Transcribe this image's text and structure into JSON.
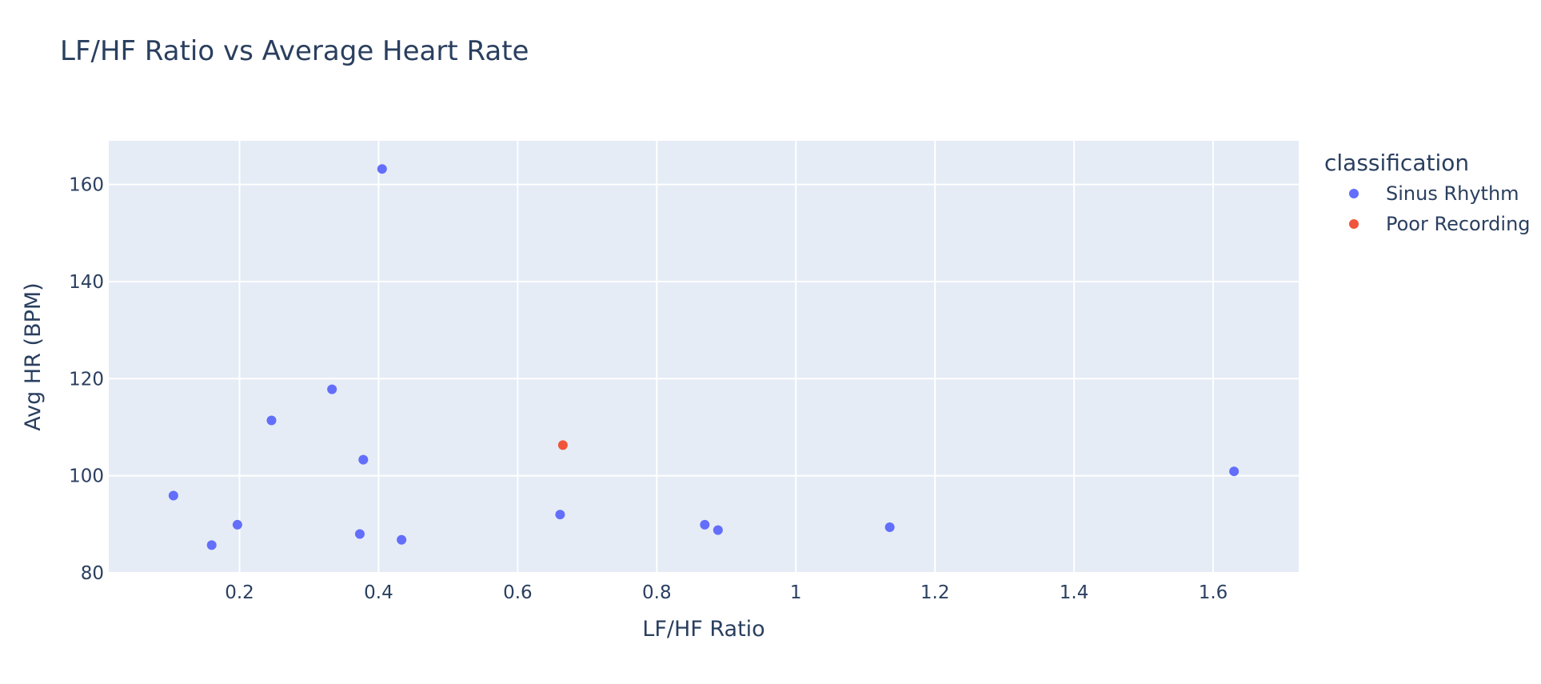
{
  "chart_data": {
    "type": "scatter",
    "title": "LF/HF Ratio vs Average Heart Rate",
    "xlabel": "LF/HF Ratio",
    "ylabel": "Avg HR (BPM)",
    "xlim": [
      0.012,
      1.723
    ],
    "ylim": [
      80,
      169
    ],
    "x_ticks": [
      0.2,
      0.4,
      0.6,
      0.8,
      1,
      1.2,
      1.4,
      1.6
    ],
    "x_tick_labels": [
      "0.2",
      "0.4",
      "0.6",
      "0.8",
      "1",
      "1.2",
      "1.4",
      "1.6"
    ],
    "y_ticks": [
      80,
      100,
      120,
      140,
      160
    ],
    "y_tick_labels": [
      "80",
      "100",
      "120",
      "140",
      "160"
    ],
    "grid": true,
    "legend": {
      "title": "classification",
      "placement": "top-right outside"
    },
    "series": [
      {
        "name": "Sinus Rhythm",
        "color": "#636efa",
        "points": [
          {
            "x": 0.405,
            "y": 163.2
          },
          {
            "x": 0.333,
            "y": 117.8
          },
          {
            "x": 0.246,
            "y": 111.4
          },
          {
            "x": 0.378,
            "y": 103.3
          },
          {
            "x": 0.105,
            "y": 95.9
          },
          {
            "x": 0.661,
            "y": 92.0
          },
          {
            "x": 0.197,
            "y": 89.9
          },
          {
            "x": 0.869,
            "y": 89.9
          },
          {
            "x": 0.888,
            "y": 88.8
          },
          {
            "x": 1.135,
            "y": 89.4
          },
          {
            "x": 0.373,
            "y": 88.0
          },
          {
            "x": 0.433,
            "y": 86.8
          },
          {
            "x": 0.16,
            "y": 85.7
          },
          {
            "x": 1.63,
            "y": 100.9
          }
        ]
      },
      {
        "name": "Poor Recording",
        "color": "#EF553B",
        "points": [
          {
            "x": 0.665,
            "y": 106.3
          }
        ]
      }
    ]
  },
  "colors": {
    "plot_background": "#e5ecf6",
    "grid": "#ffffff",
    "text": "#2a3f5f"
  }
}
